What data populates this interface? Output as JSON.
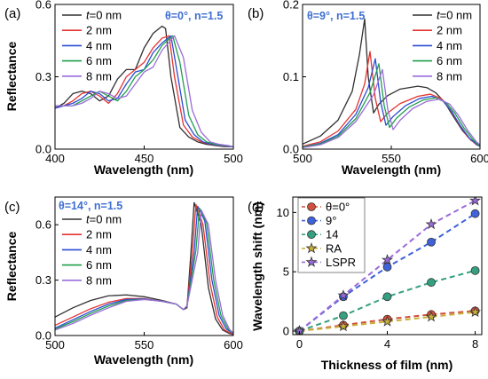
{
  "chart_data": [
    {
      "panel_label": "(a)",
      "type": "line",
      "annotation": "θ=0°, n=1.5",
      "xlabel": "Wavelength (nm)",
      "ylabel": "Reflectance",
      "xlim": [
        400,
        500
      ],
      "ylim": [
        0,
        0.6
      ],
      "xticks": [
        "400",
        "450",
        "500"
      ],
      "yticks": [
        "0.0",
        "0.3",
        "0.6"
      ],
      "legend_position": "top-left",
      "series": [
        {
          "name": "t=0 nm",
          "color": "#303030",
          "x": [
            400,
            405,
            410,
            415,
            420,
            425,
            430,
            435,
            440,
            445,
            450,
            455,
            460,
            462,
            465,
            470,
            475,
            480,
            485,
            490,
            495,
            500
          ],
          "y": [
            0.17,
            0.19,
            0.23,
            0.24,
            0.23,
            0.2,
            0.22,
            0.29,
            0.33,
            0.33,
            0.42,
            0.48,
            0.51,
            0.5,
            0.3,
            0.09,
            0.05,
            0.03,
            0.02,
            0.015,
            0.01,
            0.01
          ]
        },
        {
          "name": "2 nm",
          "color": "#e3342f",
          "x": [
            400,
            405,
            410,
            415,
            420,
            425,
            430,
            435,
            440,
            445,
            450,
            455,
            460,
            464,
            467,
            472,
            477,
            482,
            487,
            492,
            497,
            500
          ],
          "y": [
            0.17,
            0.18,
            0.2,
            0.23,
            0.24,
            0.22,
            0.19,
            0.23,
            0.3,
            0.33,
            0.36,
            0.42,
            0.46,
            0.47,
            0.3,
            0.1,
            0.05,
            0.03,
            0.02,
            0.015,
            0.01,
            0.01
          ]
        },
        {
          "name": "4 nm",
          "color": "#2b4bd6",
          "x": [
            400,
            405,
            410,
            415,
            420,
            425,
            430,
            435,
            440,
            445,
            450,
            455,
            460,
            465,
            468,
            473,
            478,
            483,
            488,
            493,
            498,
            500
          ],
          "y": [
            0.17,
            0.18,
            0.19,
            0.21,
            0.24,
            0.23,
            0.2,
            0.21,
            0.27,
            0.32,
            0.33,
            0.4,
            0.44,
            0.47,
            0.34,
            0.12,
            0.06,
            0.03,
            0.02,
            0.015,
            0.01,
            0.01
          ]
        },
        {
          "name": "6 nm",
          "color": "#1f9e4a",
          "x": [
            400,
            405,
            410,
            415,
            420,
            425,
            430,
            435,
            440,
            445,
            450,
            455,
            460,
            466,
            470,
            475,
            480,
            485,
            490,
            495,
            500
          ],
          "y": [
            0.18,
            0.18,
            0.18,
            0.2,
            0.22,
            0.24,
            0.22,
            0.2,
            0.24,
            0.3,
            0.33,
            0.37,
            0.43,
            0.47,
            0.36,
            0.14,
            0.06,
            0.03,
            0.02,
            0.015,
            0.01
          ]
        },
        {
          "name": "8 nm",
          "color": "#9a6cd9",
          "x": [
            400,
            405,
            410,
            415,
            420,
            425,
            430,
            435,
            440,
            445,
            450,
            455,
            460,
            467,
            472,
            477,
            482,
            487,
            492,
            497,
            500
          ],
          "y": [
            0.18,
            0.18,
            0.18,
            0.19,
            0.21,
            0.24,
            0.23,
            0.21,
            0.22,
            0.27,
            0.32,
            0.34,
            0.41,
            0.47,
            0.38,
            0.16,
            0.07,
            0.03,
            0.02,
            0.015,
            0.01
          ]
        }
      ]
    },
    {
      "panel_label": "(b)",
      "type": "line",
      "annotation": "θ=9°, n=1.5",
      "xlabel": "Wavelength (nm)",
      "ylabel": "",
      "xlim": [
        500,
        600
      ],
      "ylim": [
        0,
        0.2
      ],
      "xticks": [
        "500",
        "550",
        "600"
      ],
      "yticks": [
        "0.0",
        "0.1",
        "0.2"
      ],
      "legend_position": "top-right",
      "series": [
        {
          "name": "t=0 nm",
          "color": "#303030",
          "x": [
            500,
            510,
            520,
            528,
            532,
            535,
            537,
            540,
            543,
            548,
            555,
            565,
            570,
            575,
            580,
            585,
            590,
            595,
            600
          ],
          "y": [
            0.007,
            0.018,
            0.04,
            0.08,
            0.13,
            0.18,
            0.1,
            0.05,
            0.062,
            0.074,
            0.083,
            0.087,
            0.085,
            0.078,
            0.065,
            0.045,
            0.026,
            0.012,
            0.005
          ]
        },
        {
          "name": "2 nm",
          "color": "#e3342f",
          "x": [
            500,
            510,
            520,
            530,
            535,
            538,
            541,
            544,
            548,
            555,
            565,
            572,
            578,
            583,
            588,
            593,
            598,
            600
          ],
          "y": [
            0.004,
            0.01,
            0.025,
            0.055,
            0.09,
            0.135,
            0.07,
            0.038,
            0.05,
            0.063,
            0.073,
            0.076,
            0.07,
            0.055,
            0.035,
            0.017,
            0.006,
            0.004
          ]
        },
        {
          "name": "4 nm",
          "color": "#2b4bd6",
          "x": [
            500,
            510,
            520,
            530,
            537,
            541,
            544,
            547,
            551,
            558,
            566,
            573,
            579,
            584,
            589,
            594,
            599,
            600
          ],
          "y": [
            0.003,
            0.008,
            0.02,
            0.048,
            0.085,
            0.125,
            0.065,
            0.033,
            0.045,
            0.06,
            0.07,
            0.073,
            0.067,
            0.052,
            0.032,
            0.015,
            0.005,
            0.004
          ]
        },
        {
          "name": "6 nm",
          "color": "#1f9e4a",
          "x": [
            500,
            510,
            520,
            530,
            538,
            543,
            546,
            549,
            553,
            560,
            568,
            575,
            581,
            586,
            591,
            596,
            600
          ],
          "y": [
            0.003,
            0.007,
            0.018,
            0.042,
            0.078,
            0.118,
            0.06,
            0.03,
            0.043,
            0.058,
            0.068,
            0.071,
            0.064,
            0.049,
            0.029,
            0.013,
            0.004
          ]
        },
        {
          "name": "8 nm",
          "color": "#9a6cd9",
          "x": [
            500,
            510,
            520,
            530,
            540,
            545,
            548,
            551,
            555,
            562,
            570,
            577,
            583,
            588,
            593,
            598,
            600
          ],
          "y": [
            0.002,
            0.006,
            0.016,
            0.038,
            0.075,
            0.11,
            0.055,
            0.027,
            0.04,
            0.056,
            0.066,
            0.069,
            0.062,
            0.046,
            0.026,
            0.01,
            0.006
          ]
        }
      ]
    },
    {
      "panel_label": "(c)",
      "type": "line",
      "annotation": "θ=14°, n=1.5",
      "xlabel": "Wavelength (nm)",
      "ylabel": "Reflectance",
      "xlim": [
        500,
        600
      ],
      "ylim": [
        0,
        0.75
      ],
      "xticks": [
        "500",
        "550",
        "600"
      ],
      "yticks": [
        "0.0",
        "0.3",
        "0.6"
      ],
      "legend_position": "top-left",
      "series": [
        {
          "name": "t=0 nm",
          "color": "#303030",
          "x": [
            500,
            510,
            520,
            530,
            540,
            550,
            560,
            568,
            572,
            574,
            576,
            578,
            582,
            586,
            590,
            594,
            598,
            600
          ],
          "y": [
            0.1,
            0.15,
            0.19,
            0.215,
            0.22,
            0.21,
            0.19,
            0.17,
            0.14,
            0.15,
            0.42,
            0.72,
            0.6,
            0.26,
            0.09,
            0.03,
            0.01,
            0.005
          ]
        },
        {
          "name": "2 nm",
          "color": "#e3342f",
          "x": [
            500,
            510,
            520,
            530,
            540,
            550,
            560,
            568,
            572,
            574,
            577,
            579,
            583,
            587,
            591,
            595,
            599,
            600
          ],
          "y": [
            0.055,
            0.1,
            0.145,
            0.18,
            0.2,
            0.2,
            0.185,
            0.17,
            0.14,
            0.16,
            0.45,
            0.71,
            0.6,
            0.28,
            0.1,
            0.03,
            0.01,
            0.006
          ]
        },
        {
          "name": "4 nm",
          "color": "#2b4bd6",
          "x": [
            500,
            510,
            520,
            530,
            540,
            550,
            560,
            568,
            572,
            574,
            578,
            580,
            584,
            588,
            592,
            596,
            600
          ],
          "y": [
            0.04,
            0.085,
            0.13,
            0.17,
            0.195,
            0.198,
            0.185,
            0.17,
            0.14,
            0.16,
            0.45,
            0.7,
            0.62,
            0.3,
            0.11,
            0.035,
            0.01
          ]
        },
        {
          "name": "6 nm",
          "color": "#1f9e4a",
          "x": [
            500,
            510,
            520,
            530,
            540,
            550,
            560,
            568,
            572,
            574,
            579,
            581,
            585,
            589,
            593,
            597,
            600
          ],
          "y": [
            0.035,
            0.075,
            0.12,
            0.16,
            0.19,
            0.196,
            0.185,
            0.17,
            0.14,
            0.16,
            0.46,
            0.69,
            0.61,
            0.3,
            0.11,
            0.035,
            0.012
          ]
        },
        {
          "name": "8 nm",
          "color": "#9a6cd9",
          "x": [
            500,
            510,
            520,
            530,
            540,
            550,
            560,
            568,
            572,
            574,
            580,
            582,
            586,
            590,
            594,
            598,
            600
          ],
          "y": [
            0.03,
            0.065,
            0.11,
            0.15,
            0.185,
            0.195,
            0.186,
            0.17,
            0.14,
            0.16,
            0.45,
            0.68,
            0.6,
            0.3,
            0.11,
            0.03,
            0.015
          ]
        }
      ]
    },
    {
      "panel_label": "(d)",
      "type": "scatter",
      "xlabel": "Thickness of film (nm)",
      "ylabel": "Wavelength shift (nm)",
      "xlim": [
        -0.3,
        8.3
      ],
      "ylim": [
        -0.3,
        11.3
      ],
      "xticks": [
        "0",
        "4",
        "8"
      ],
      "yticks": [
        "0",
        "5",
        "10"
      ],
      "legend_position": "top-left",
      "series": [
        {
          "name": "θ=0°",
          "color": "#d0503d",
          "marker": "circle",
          "x": [
            0,
            2,
            4,
            6,
            8
          ],
          "y": [
            0,
            0.5,
            1.0,
            1.4,
            1.7
          ]
        },
        {
          "name": "9°",
          "color": "#3f62d9",
          "marker": "circle",
          "x": [
            0,
            2,
            4,
            6,
            8
          ],
          "y": [
            0,
            2.9,
            5.4,
            7.5,
            9.9
          ]
        },
        {
          "name": "14",
          "color": "#35a080",
          "marker": "circle",
          "x": [
            0,
            2,
            4,
            6,
            8
          ],
          "y": [
            0,
            1.3,
            2.9,
            4.1,
            5.1
          ]
        },
        {
          "name": "RA",
          "color": "#c9b03a",
          "marker": "star",
          "x": [
            0,
            2,
            4,
            6,
            8
          ],
          "y": [
            0,
            0.4,
            0.8,
            1.2,
            1.6
          ]
        },
        {
          "name": "LSPR",
          "color": "#9a6cd9",
          "marker": "star",
          "x": [
            0,
            2,
            4,
            6,
            8
          ],
          "y": [
            0,
            3.0,
            6.0,
            9.0,
            11.0
          ]
        }
      ]
    }
  ]
}
